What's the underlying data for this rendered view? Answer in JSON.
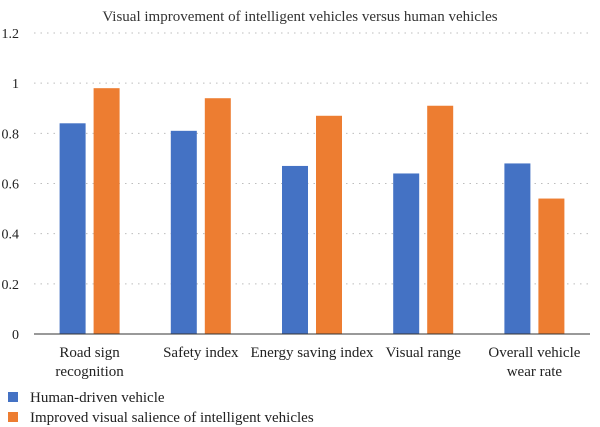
{
  "chart_data": {
    "type": "bar",
    "title": "Visual improvement of intelligent vehicles versus human vehicles",
    "categories": [
      [
        "Road sign",
        "recognition"
      ],
      [
        "Safety index"
      ],
      [
        "Energy saving index"
      ],
      [
        "Visual range"
      ],
      [
        "Overall vehicle",
        "wear rate"
      ]
    ],
    "series": [
      {
        "name": "Human-driven vehicle",
        "color": "#4472C4",
        "values": [
          0.84,
          0.81,
          0.67,
          0.64,
          0.68
        ]
      },
      {
        "name": "Improved visual salience of intelligent vehicles",
        "color": "#ED7D31",
        "values": [
          0.98,
          0.94,
          0.87,
          0.91,
          0.54
        ]
      }
    ],
    "ylim": [
      0,
      1.2
    ],
    "yticks": [
      0,
      0.2,
      0.4,
      0.6,
      0.8,
      1,
      1.2
    ],
    "yticklabels": [
      "0",
      "0.2",
      "0.4",
      "0.6",
      "0.8",
      "1",
      "1.2"
    ],
    "grid": true,
    "legend_position": "bottom-left",
    "xlabel": "",
    "ylabel": ""
  }
}
